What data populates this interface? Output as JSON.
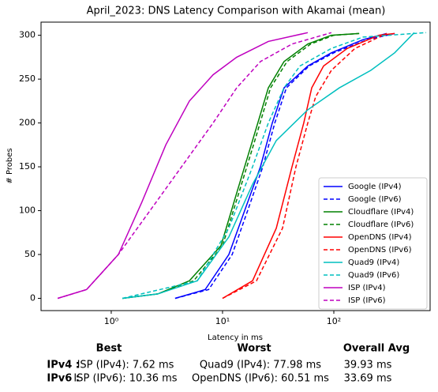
{
  "chart_data": {
    "type": "line",
    "title": "April_2023: DNS Latency Comparison with Akamai (mean)",
    "x_label": "Latency in ms",
    "y_label": "# Probes",
    "xscale": "log",
    "xlim": [
      0.234,
      733
    ],
    "ylim": [
      -14,
      315
    ],
    "xticks": [
      {
        "value": 1,
        "label": "10⁰"
      },
      {
        "value": 10,
        "label": "10¹"
      },
      {
        "value": 100,
        "label": "10²"
      }
    ],
    "yticks": [
      0,
      50,
      100,
      150,
      200,
      250,
      300
    ],
    "legend": "lower right",
    "series": [
      {
        "name": "Google (IPv4)",
        "color": "#0000ff",
        "linestyle": "solid",
        "x": [
          3.75,
          6.98,
          11.4,
          15.8,
          21.9,
          28,
          35.7,
          58.3,
          95,
          183,
          299
        ],
        "values": [
          0,
          10,
          50,
          100,
          150,
          200,
          240,
          265,
          280,
          295,
          302
        ]
      },
      {
        "name": "Google (IPv6)",
        "color": "#0000ff",
        "linestyle": "dashed",
        "x": [
          3.75,
          7.5,
          12.2,
          16.8,
          23,
          29.5,
          37.5,
          60,
          100,
          200,
          352
        ],
        "values": [
          0,
          10,
          50,
          100,
          150,
          200,
          240,
          265,
          280,
          295,
          302
        ]
      },
      {
        "name": "Cloudflare (IPv4)",
        "color": "#008000",
        "linestyle": "solid",
        "x": [
          1.26,
          2.62,
          5.04,
          9.68,
          13.4,
          18.6,
          25.8,
          35.7,
          58.3,
          95,
          169
        ],
        "values": [
          0,
          5,
          20,
          60,
          120,
          180,
          240,
          270,
          290,
          300,
          302
        ]
      },
      {
        "name": "Cloudflare (IPv6)",
        "color": "#008000",
        "linestyle": "dashed",
        "x": [
          1.26,
          2.62,
          5.5,
          10,
          14,
          19.5,
          27,
          38,
          62,
          100,
          169
        ],
        "values": [
          0,
          5,
          20,
          60,
          120,
          180,
          240,
          270,
          290,
          300,
          302
        ]
      },
      {
        "name": "OpenDNS (IPv4)",
        "color": "#ff0000",
        "linestyle": "solid",
        "x": [
          10,
          18.6,
          30.4,
          42.1,
          53.7,
          63.3,
          80.9,
          132,
          254,
          352
        ],
        "values": [
          0,
          20,
          80,
          150,
          200,
          240,
          265,
          285,
          300,
          302
        ]
      },
      {
        "name": "OpenDNS (IPv6)",
        "color": "#ff0000",
        "linestyle": "dashed",
        "x": [
          10,
          20.2,
          34.6,
          45.7,
          58.3,
          68.7,
          95,
          155,
          299
        ],
        "values": [
          0,
          20,
          80,
          150,
          200,
          230,
          260,
          285,
          302
        ]
      },
      {
        "name": "Quad9 (IPv4)",
        "color": "#00bfbf",
        "linestyle": "solid",
        "x": [
          1.26,
          2.62,
          5.93,
          11.4,
          18.6,
          30.4,
          58.3,
          112,
          215,
          352,
          528
        ],
        "values": [
          0,
          5,
          20,
          70,
          130,
          180,
          215,
          240,
          260,
          280,
          303
        ]
      },
      {
        "name": "Quad9 (IPv6)",
        "color": "#00bfbf",
        "linestyle": "dashed",
        "x": [
          1.26,
          5.93,
          11.4,
          18.6,
          25.8,
          35.7,
          49.6,
          95,
          183,
          676
        ],
        "values": [
          0,
          20,
          80,
          150,
          200,
          240,
          265,
          285,
          298,
          303
        ]
      },
      {
        "name": "ISP (IPv4)",
        "color": "#bf00bf",
        "linestyle": "solid",
        "x": [
          0.33,
          0.6,
          1.16,
          1.89,
          3.09,
          5.04,
          8.22,
          13.4,
          25.8,
          58.3
        ],
        "values": [
          0,
          10,
          50,
          110,
          175,
          225,
          255,
          275,
          293,
          303
        ]
      },
      {
        "name": "ISP (IPv6)",
        "color": "#bf00bf",
        "linestyle": "dashed",
        "x": [
          0.33,
          0.6,
          1.16,
          2.23,
          4.28,
          8.22,
          13.4,
          21.9,
          42.1,
          95
        ],
        "values": [
          0,
          10,
          50,
          100,
          150,
          200,
          240,
          270,
          290,
          303
        ]
      }
    ]
  },
  "table": {
    "headers": [
      "Best",
      "Worst",
      "Overall Avg"
    ],
    "rows": [
      [
        "IPv4 :",
        "ISP (IPv4): 7.62 ms",
        "Quad9 (IPv4): 77.98 ms",
        "39.93 ms"
      ],
      [
        "IPv6 :",
        "ISP (IPv6): 10.36 ms",
        "OpenDNS (IPv6): 60.51 ms",
        "33.69 ms"
      ]
    ]
  }
}
